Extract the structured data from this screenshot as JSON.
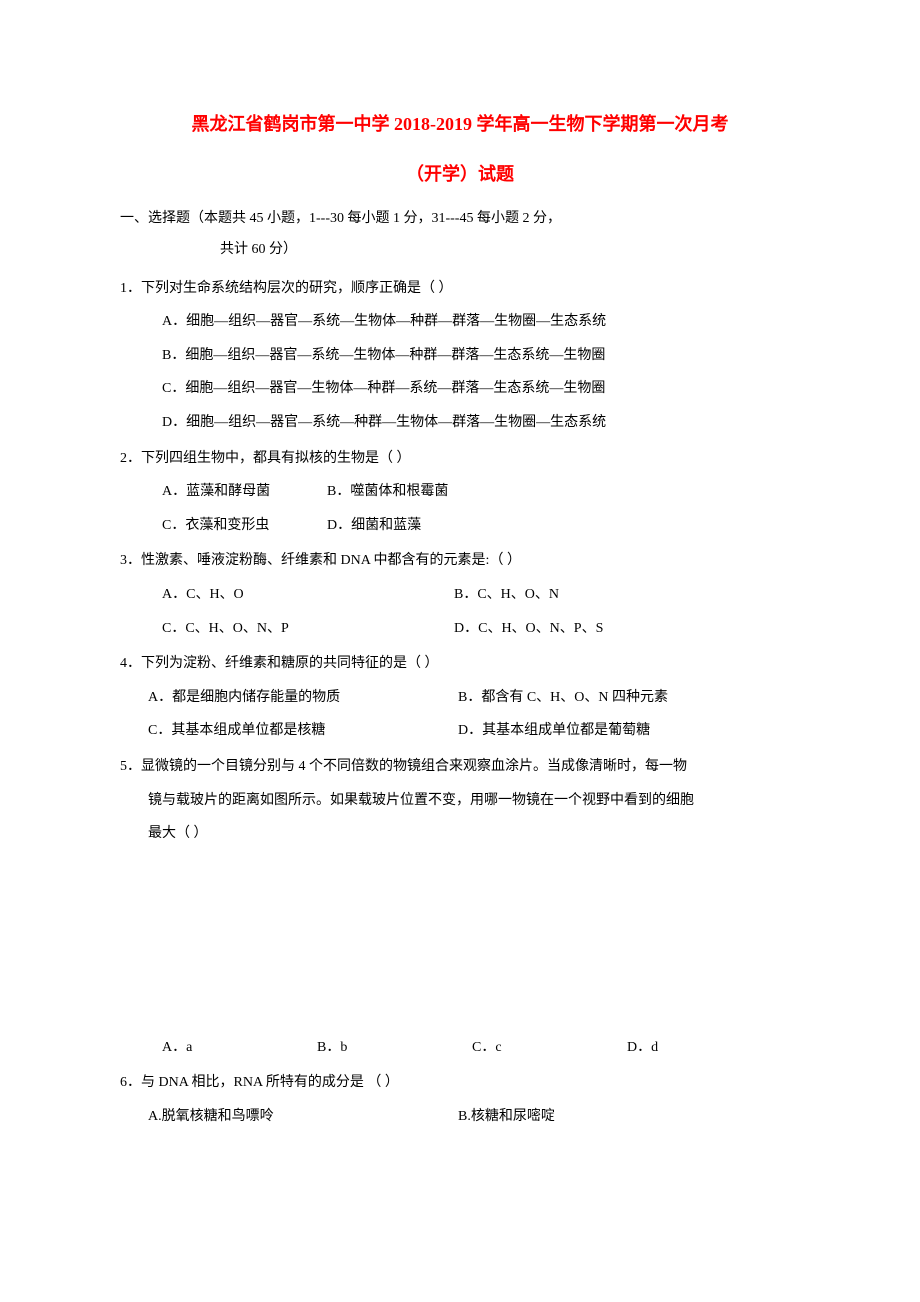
{
  "title": {
    "main": "黑龙江省鹤岗市第一中学 2018-2019 学年高一生物下学期第一次月考",
    "sub": "（开学）试题",
    "color": "#ff0000",
    "fontsize": 18
  },
  "section_header": {
    "line1": "一、选择题（本题共 45 小题，1---30 每小题 1 分，31---45 每小题 2 分，",
    "line2": "共计 60 分）"
  },
  "questions": [
    {
      "num": "1．",
      "text": "下列对生命系统结构层次的研究，顺序正确是（   ）",
      "options": [
        "A．细胞—组织—器官—系统—生物体—种群—群落—生物圈—生态系统",
        "B．细胞—组织—器官—系统—生物体—种群—群落—生态系统—生物圈",
        "C．细胞—组织—器官—生物体—种群—系统—群落—生态系统—生物圈",
        "D．细胞—组织—器官—系统—种群—生物体—群落—生物圈—生态系统"
      ]
    },
    {
      "num": "2．",
      "text": "下列四组生物中，都具有拟核的生物是（   ）",
      "options_row1": {
        "a": "A．蓝藻和酵母菌",
        "b": "B．噬菌体和根霉菌"
      },
      "options_row2": {
        "c": "C．衣藻和变形虫",
        "d": "D．细菌和蓝藻"
      }
    },
    {
      "num": "3．",
      "text": "性激素、唾液淀粉酶、纤维素和 DNA 中都含有的元素是:（     ）",
      "options_row1": {
        "a": "A．C、H、O",
        "b": "B．C、H、O、N"
      },
      "options_row2": {
        "c": "C．C、H、O、N、P",
        "d": "D．C、H、O、N、P、S"
      }
    },
    {
      "num": "4．",
      "text": "下列为淀粉、纤维素和糖原的共同特征的是（   ）",
      "options_row1": {
        "a": "A．都是细胞内储存能量的物质",
        "b": "B．都含有 C、H、O、N 四种元素"
      },
      "options_row2": {
        "c": "C．其基本组成单位都是核糖",
        "d": "D．其基本组成单位都是葡萄糖"
      }
    },
    {
      "num": "5．",
      "text": "显微镜的一个目镜分别与 4 个不同倍数的物镜组合来观察血涂片。当成像清晰时，每一物",
      "text2": "镜与载玻片的距离如图所示。如果载玻片位置不变，用哪一物镜在一个视野中看到的细胞",
      "text3": "最大（   ）",
      "options_quad": {
        "a": "A．a",
        "b": "B．b",
        "c": "C．c",
        "d": "D．d"
      }
    },
    {
      "num": "6．",
      "text": "与 DNA 相比，RNA 所特有的成分是  （     ）",
      "options_row1": {
        "a": "A.脱氧核糖和鸟嘌呤",
        "b": "B.核糖和尿嘧啶"
      }
    }
  ],
  "body_fontsize": 14,
  "body_color": "#000000",
  "background_color": "#ffffff"
}
